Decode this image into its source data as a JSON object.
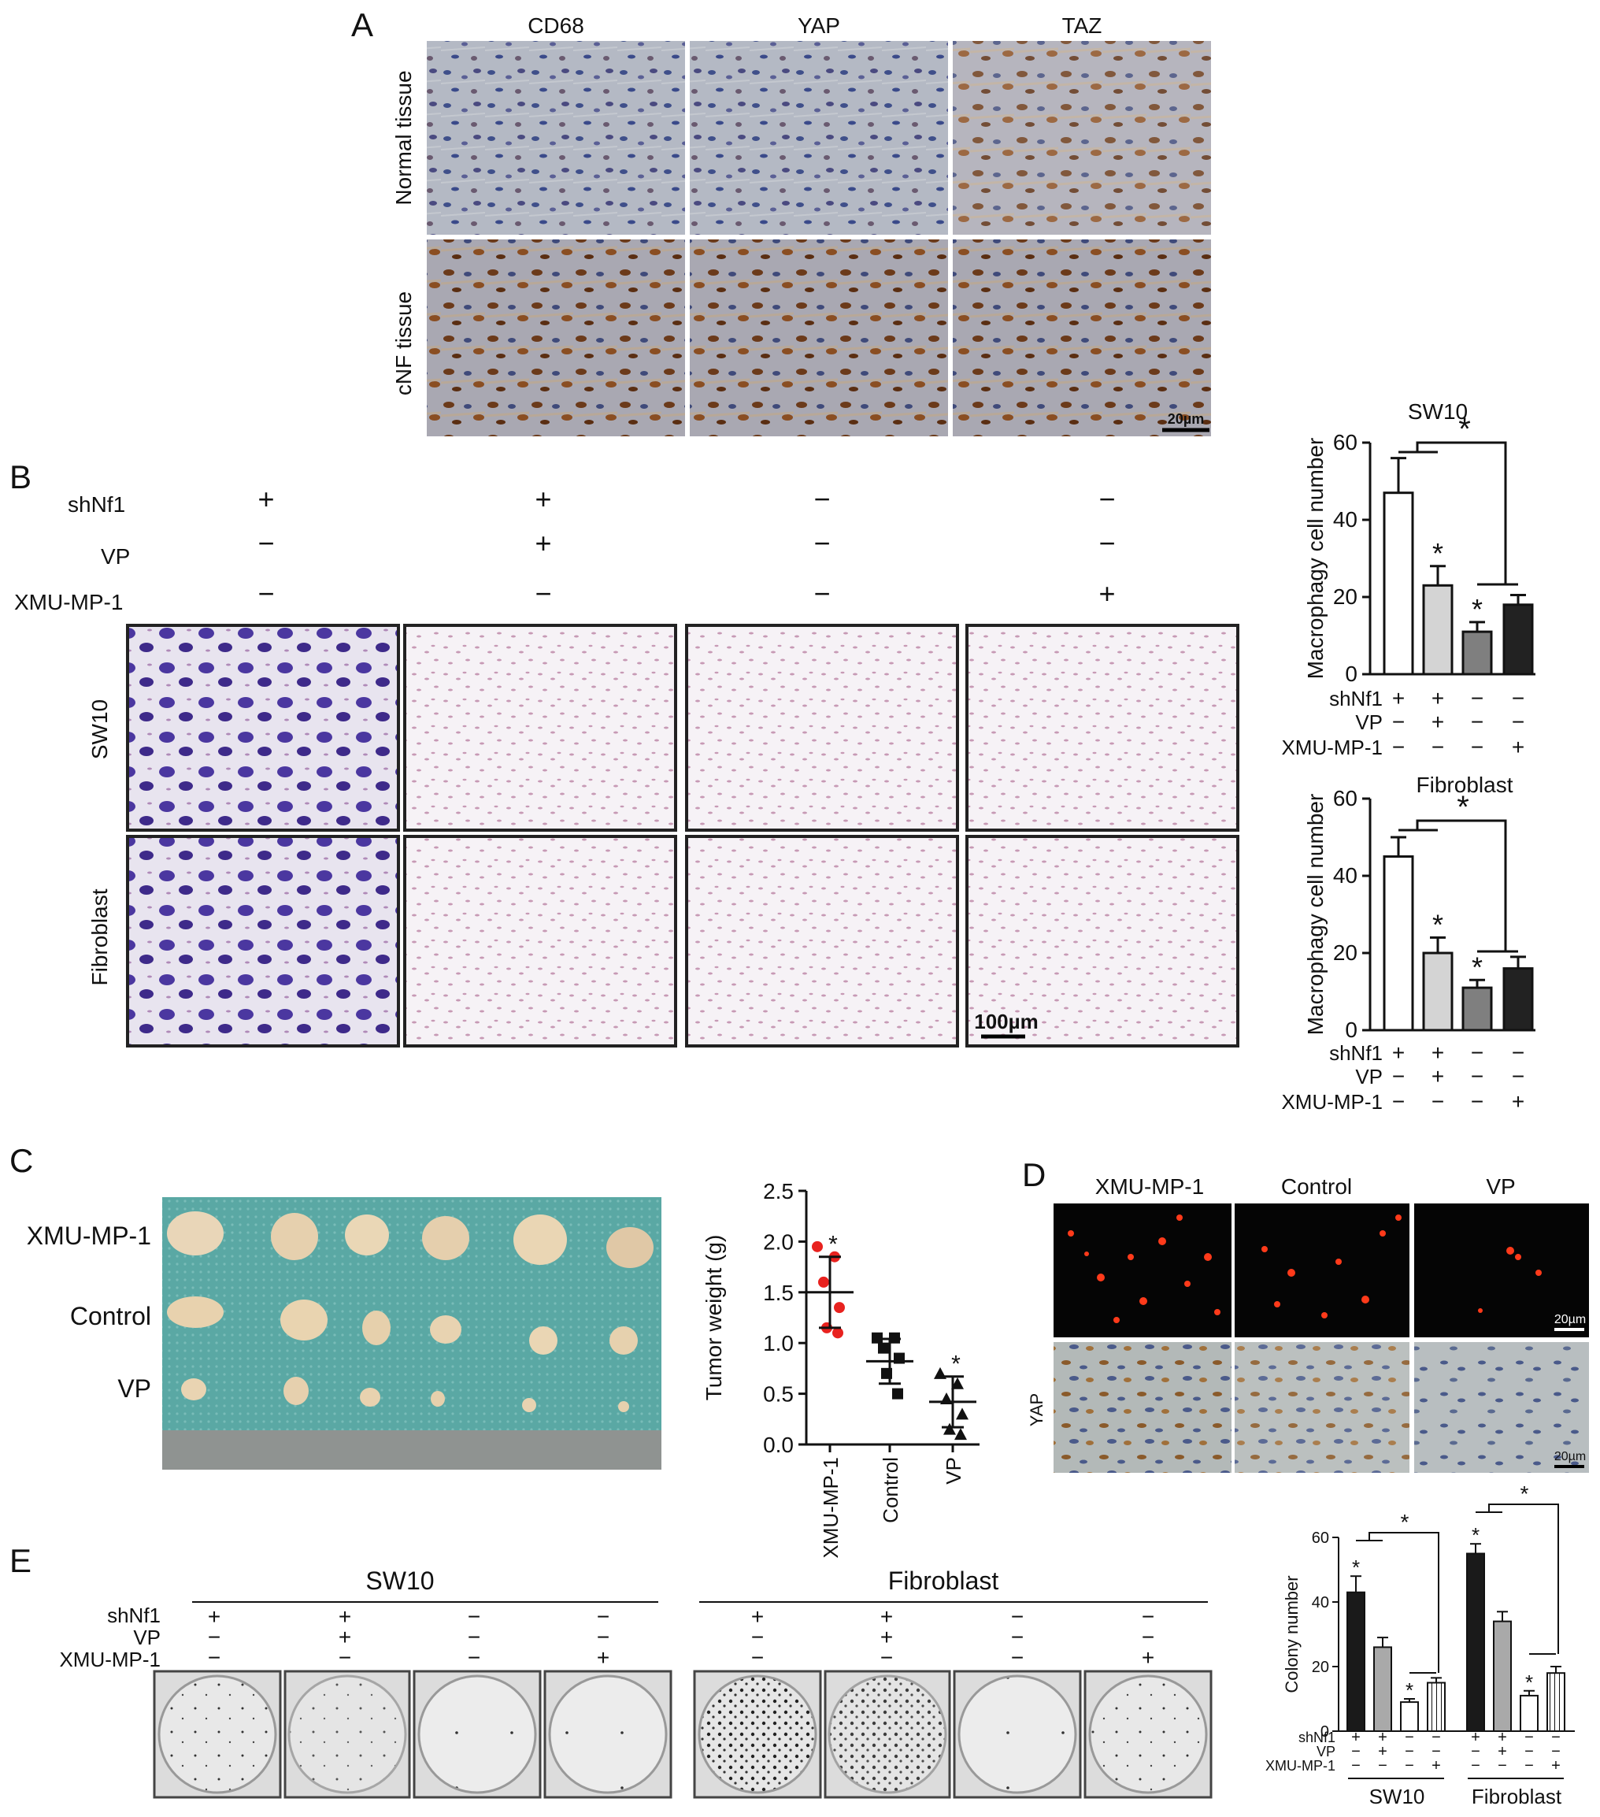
{
  "panelA": {
    "letter": "A",
    "columns": [
      "CD68",
      "YAP",
      "TAZ"
    ],
    "rows": [
      "Normal tissue",
      "cNF tissue"
    ],
    "scale_bar": "20µm"
  },
  "panelB": {
    "letter": "B",
    "factors": [
      "shNf1",
      "VP",
      "XMU-MP-1"
    ],
    "conditions": [
      [
        "+",
        "−",
        "−"
      ],
      [
        "+",
        "+",
        "−"
      ],
      [
        "−",
        "−",
        "−"
      ],
      [
        "−",
        "−",
        "+"
      ]
    ],
    "rows": [
      "SW10",
      "Fibroblast"
    ],
    "scale_bar": "100µm"
  },
  "panelC": {
    "letter": "C",
    "photo_rows": [
      "XMU-MP-1",
      "Control",
      "VP"
    ]
  },
  "panelD": {
    "letter": "D",
    "columns": [
      "XMU-MP-1",
      "Control",
      "VP"
    ],
    "row_label": "YAP",
    "scale_bar_top": "20µm",
    "scale_bar_bottom": "20µm"
  },
  "panelE": {
    "letter": "E",
    "groups": [
      "SW10",
      "Fibroblast"
    ],
    "factors": [
      "shNf1",
      "VP",
      "XMU-MP-1"
    ],
    "conditions": [
      [
        "+",
        "−",
        "−"
      ],
      [
        "+",
        "+",
        "−"
      ],
      [
        "−",
        "−",
        "−"
      ],
      [
        "−",
        "−",
        "+"
      ]
    ]
  },
  "chart_data": [
    {
      "id": "B-SW10",
      "type": "bar",
      "title": "SW10",
      "ylabel": "Macrophagy cell number",
      "ylim": [
        0,
        60
      ],
      "yticks": [
        0,
        20,
        40,
        60
      ],
      "values": [
        47,
        23,
        11,
        18
      ],
      "errors": [
        9,
        5,
        2.5,
        2.5
      ],
      "significant": [
        false,
        true,
        true,
        false
      ],
      "colors": [
        "#ffffff",
        "#d4d4d4",
        "#7f7f7f",
        "#222222"
      ],
      "row_labels": [
        "shNf1",
        "VP",
        "XMU-MP-1"
      ],
      "conditions": [
        [
          "+",
          "−",
          "−"
        ],
        [
          "+",
          "+",
          "−"
        ],
        [
          "−",
          "−",
          "−"
        ],
        [
          "−",
          "−",
          "+"
        ]
      ],
      "bracket_label": "*"
    },
    {
      "id": "B-Fibroblast",
      "type": "bar",
      "title": "Fibroblast",
      "ylabel": "Macrophagy cell number",
      "ylim": [
        0,
        60
      ],
      "yticks": [
        0,
        20,
        40,
        60
      ],
      "values": [
        45,
        20,
        11,
        16
      ],
      "errors": [
        5,
        4,
        2,
        3
      ],
      "significant": [
        false,
        true,
        true,
        false
      ],
      "colors": [
        "#ffffff",
        "#d4d4d4",
        "#7f7f7f",
        "#222222"
      ],
      "row_labels": [
        "shNf1",
        "VP",
        "XMU-MP-1"
      ],
      "conditions": [
        [
          "+",
          "−",
          "−"
        ],
        [
          "+",
          "+",
          "−"
        ],
        [
          "−",
          "−",
          "−"
        ],
        [
          "−",
          "−",
          "+"
        ]
      ],
      "bracket_label": "*"
    },
    {
      "id": "C-weight",
      "type": "scatter",
      "ylabel": "Tumor weight (g)",
      "ylim": [
        0,
        2.5
      ],
      "yticks": [
        "0.0",
        "0.5",
        "1.0",
        "1.5",
        "2.0",
        "2.5"
      ],
      "categories": [
        "XMU-MP-1",
        "Control",
        "VP"
      ],
      "points": [
        [
          1.95,
          1.85,
          1.6,
          1.35,
          1.15,
          1.1
        ],
        [
          1.05,
          1.05,
          0.95,
          0.85,
          0.7,
          0.5
        ],
        [
          0.7,
          0.6,
          0.45,
          0.3,
          0.15,
          0.1
        ]
      ],
      "means": [
        1.5,
        0.82,
        0.42
      ],
      "sds": [
        0.35,
        0.22,
        0.25
      ],
      "significant": [
        true,
        false,
        true
      ],
      "colors": [
        "#e8221f",
        "#111111",
        "#111111"
      ],
      "markers": [
        "circle",
        "square",
        "triangle"
      ]
    },
    {
      "id": "E-colony",
      "type": "bar",
      "ylabel": "Colony number",
      "ylim": [
        0,
        60
      ],
      "yticks": [
        0,
        20,
        40,
        60
      ],
      "groups": [
        "SW10",
        "Fibroblast"
      ],
      "values": [
        [
          43,
          26,
          9,
          15
        ],
        [
          55,
          34,
          11,
          18
        ]
      ],
      "errors": [
        [
          5,
          3,
          1,
          1.5
        ],
        [
          3,
          3,
          1.5,
          2
        ]
      ],
      "significant": [
        [
          true,
          false,
          true,
          false
        ],
        [
          true,
          false,
          true,
          false
        ]
      ],
      "colors": [
        "#1a1a1a",
        "#a9a9a9",
        "#ffffff",
        "hatched"
      ],
      "row_labels": [
        "shNf1",
        "VP",
        "XMU-MP-1"
      ],
      "conditions": [
        [
          "+",
          "−",
          "−"
        ],
        [
          "+",
          "+",
          "−"
        ],
        [
          "−",
          "−",
          "−"
        ],
        [
          "−",
          "−",
          "+"
        ]
      ],
      "bracket_label": "*"
    }
  ]
}
